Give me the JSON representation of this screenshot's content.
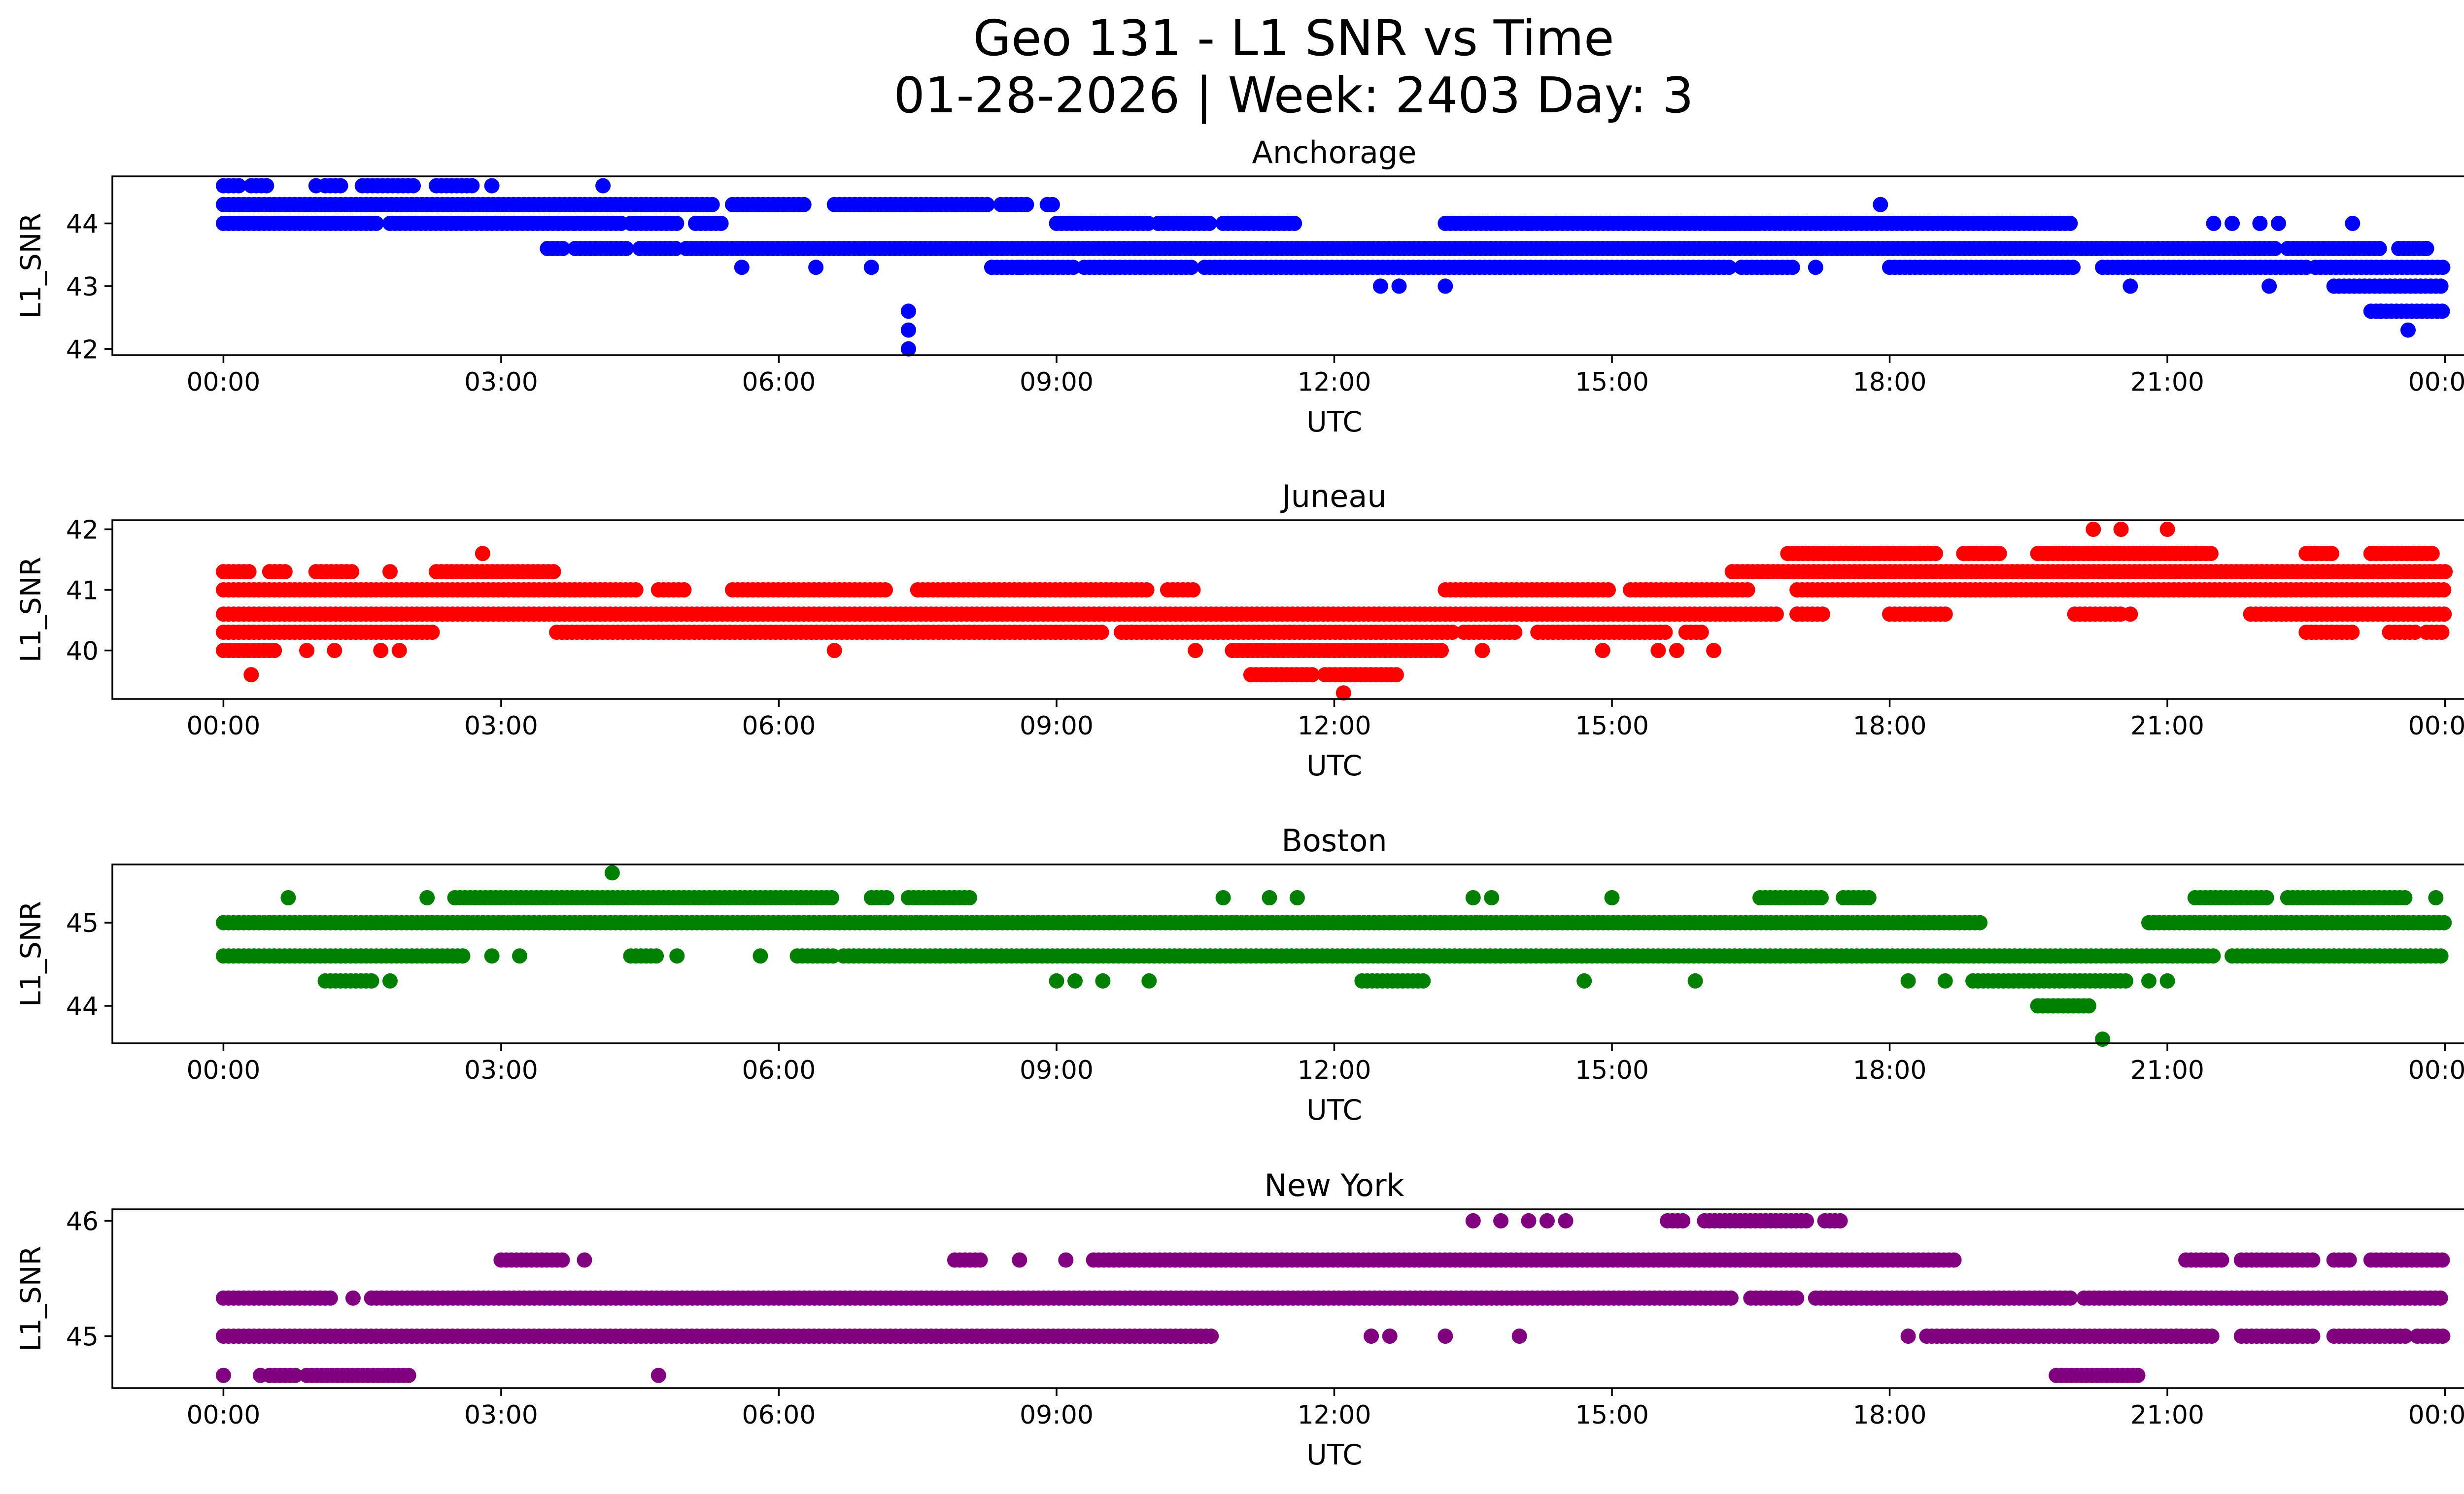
{
  "figure": {
    "title_line1": "Geo 131 - L1 SNR vs Time",
    "title_line2": "01-28-2026 | Week: 2403 Day: 3"
  },
  "chart_data": [
    {
      "type": "scatter",
      "title": "Anchorage",
      "xlabel": "UTC",
      "ylabel": "L1_SNR",
      "color": "#0000ff",
      "x_unit": "hours since 00:00 UTC",
      "xlim": [
        -1.2,
        25.2
      ],
      "ylim": [
        41.9,
        44.75
      ],
      "yticks": [
        42,
        43,
        44
      ],
      "xticklabels": [
        "00:00",
        "03:00",
        "06:00",
        "09:00",
        "12:00",
        "15:00",
        "18:00",
        "21:00",
        "00:00"
      ],
      "series": [
        {
          "name": "band 44.3",
          "y": 44.3,
          "ranges": [
            [
              0,
              5.3
            ],
            [
              5.5,
              6.3
            ],
            [
              6.6,
              8.3
            ],
            [
              8.4,
              8.7
            ],
            [
              8.9,
              9.0
            ]
          ]
        },
        {
          "name": "band 44.0",
          "y": 44.0,
          "ranges": [
            [
              0,
              1.7
            ],
            [
              1.8,
              3.8
            ],
            [
              3.8,
              4.3
            ],
            [
              4.4,
              4.9
            ],
            [
              5.1,
              5.4
            ],
            [
              9.0,
              10.0
            ],
            [
              10.1,
              10.7
            ],
            [
              10.8,
              11.6
            ],
            [
              16.1,
              20.0
            ],
            [
              13.2,
              16.6
            ]
          ]
        },
        {
          "name": "band 43.6",
          "y": 43.6,
          "ranges": [
            [
              3.5,
              3.7
            ],
            [
              3.8,
              4.4
            ],
            [
              4.5,
              4.9
            ],
            [
              5.0,
              22.2
            ],
            [
              22.3,
              23.3
            ],
            [
              23.5,
              23.8
            ]
          ]
        },
        {
          "name": "band 43.3",
          "y": 43.3,
          "ranges": [
            [
              8.3,
              9.2
            ],
            [
              9.3,
              10.5
            ],
            [
              10.6,
              16.3
            ],
            [
              16.4,
              17.0
            ],
            [
              18.0,
              20.0
            ],
            [
              20.3,
              22.5
            ],
            [
              22.6,
              24.0
            ]
          ]
        },
        {
          "name": "band 43.0",
          "y": 43.0,
          "ranges": [
            [
              22.8,
              24.0
            ]
          ]
        },
        {
          "name": "band 42.6",
          "y": 42.6,
          "ranges": [
            [
              23.2,
              24.0
            ]
          ]
        },
        {
          "name": "band 44.6",
          "y": 44.6,
          "ranges": [
            [
              0.0,
              0.2
            ],
            [
              0.3,
              0.5
            ],
            [
              1.1,
              1.3
            ],
            [
              1.5,
              2.1
            ],
            [
              2.3,
              2.7
            ]
          ]
        },
        {
          "name": "isolated",
          "points": [
            [
              1.0,
              44.6
            ],
            [
              2.9,
              44.6
            ],
            [
              4.1,
              44.6
            ],
            [
              5.6,
              43.3
            ],
            [
              6.4,
              43.3
            ],
            [
              7.0,
              43.3
            ],
            [
              7.4,
              42.6
            ],
            [
              7.4,
              42.3
            ],
            [
              7.4,
              42.0
            ],
            [
              8.3,
              43.3
            ],
            [
              8.6,
              43.3
            ],
            [
              12.5,
              43.0
            ],
            [
              12.7,
              43.0
            ],
            [
              13.2,
              43.0
            ],
            [
              13.8,
              44.0
            ],
            [
              14.1,
              44.0
            ],
            [
              14.3,
              44.0
            ],
            [
              17.2,
              43.3
            ],
            [
              17.9,
              44.3
            ],
            [
              20.6,
              43.0
            ],
            [
              21.5,
              44.0
            ],
            [
              21.7,
              44.0
            ],
            [
              22.0,
              44.0
            ],
            [
              22.2,
              44.0
            ],
            [
              22.1,
              43.0
            ],
            [
              23.3,
              42.6
            ],
            [
              23.6,
              42.3
            ],
            [
              23.0,
              44.0
            ],
            [
              23.8,
              43.6
            ]
          ]
        }
      ]
    },
    {
      "type": "scatter",
      "title": "Juneau",
      "xlabel": "UTC",
      "ylabel": "L1_SNR",
      "color": "#ff0000",
      "x_unit": "hours since 00:00 UTC",
      "xlim": [
        -1.2,
        25.2
      ],
      "ylim": [
        39.2,
        42.15
      ],
      "yticks": [
        40,
        41,
        42
      ],
      "xticklabels": [
        "00:00",
        "03:00",
        "06:00",
        "09:00",
        "12:00",
        "15:00",
        "18:00",
        "21:00",
        "00:00"
      ],
      "series": [
        {
          "name": "band 41.3",
          "y": 41.3,
          "ranges": [
            [
              0.0,
              0.3
            ],
            [
              0.5,
              0.7
            ],
            [
              1.0,
              1.4
            ],
            [
              2.3,
              3.6
            ],
            [
              16.3,
              24.0
            ]
          ]
        },
        {
          "name": "band 41.0",
          "y": 41.0,
          "ranges": [
            [
              0.0,
              4.5
            ],
            [
              4.7,
              5.0
            ],
            [
              5.5,
              7.2
            ],
            [
              7.5,
              10.0
            ],
            [
              10.2,
              10.5
            ],
            [
              13.2,
              15.0
            ],
            [
              15.2,
              16.5
            ],
            [
              17.0,
              24.0
            ]
          ]
        },
        {
          "name": "band 40.6",
          "y": 40.6,
          "ranges": [
            [
              0.0,
              16.8
            ],
            [
              17.0,
              17.3
            ],
            [
              18.0,
              18.6
            ],
            [
              20.0,
              20.5
            ],
            [
              21.9,
              24.0
            ]
          ]
        },
        {
          "name": "band 40.3",
          "y": 40.3,
          "ranges": [
            [
              0.0,
              2.3
            ],
            [
              3.6,
              9.5
            ],
            [
              9.7,
              13.3
            ],
            [
              13.4,
              14.0
            ],
            [
              14.2,
              15.6
            ],
            [
              15.8,
              16.0
            ],
            [
              22.5,
              23.0
            ],
            [
              23.4,
              23.7
            ],
            [
              23.8,
              24.0
            ]
          ]
        },
        {
          "name": "band 40.0",
          "y": 40.0,
          "ranges": [
            [
              0.0,
              0.6
            ],
            [
              10.9,
              13.2
            ]
          ]
        },
        {
          "name": "band 39.6",
          "y": 39.6,
          "ranges": [
            [
              11.1,
              11.8
            ],
            [
              11.9,
              12.7
            ]
          ]
        },
        {
          "name": "band 41.6",
          "y": 41.6,
          "ranges": [
            [
              16.9,
              18.5
            ],
            [
              18.8,
              19.2
            ],
            [
              19.6,
              21.5
            ],
            [
              22.5,
              22.8
            ],
            [
              23.2,
              23.9
            ]
          ]
        },
        {
          "name": "isolated",
          "points": [
            [
              0.3,
              39.6
            ],
            [
              0.9,
              40.0
            ],
            [
              1.2,
              40.0
            ],
            [
              1.7,
              40.0
            ],
            [
              1.9,
              40.0
            ],
            [
              1.8,
              41.3
            ],
            [
              2.8,
              41.6
            ],
            [
              6.6,
              40.0
            ],
            [
              10.5,
              40.0
            ],
            [
              12.1,
              39.3
            ],
            [
              13.6,
              40.0
            ],
            [
              14.9,
              40.0
            ],
            [
              15.5,
              40.0
            ],
            [
              15.7,
              40.0
            ],
            [
              16.1,
              40.0
            ],
            [
              17.0,
              40.6
            ],
            [
              20.2,
              42.0
            ],
            [
              20.5,
              42.0
            ],
            [
              21.0,
              42.0
            ],
            [
              18.6,
              40.6
            ],
            [
              20.6,
              40.6
            ]
          ]
        }
      ]
    },
    {
      "type": "scatter",
      "title": "Boston",
      "xlabel": "UTC",
      "ylabel": "L1_SNR",
      "color": "#008000",
      "x_unit": "hours since 00:00 UTC",
      "xlim": [
        -1.2,
        25.2
      ],
      "ylim": [
        43.55,
        45.7
      ],
      "yticks": [
        44,
        45
      ],
      "xticklabels": [
        "00:00",
        "03:00",
        "06:00",
        "09:00",
        "12:00",
        "15:00",
        "18:00",
        "21:00",
        "00:00"
      ],
      "series": [
        {
          "name": "band 45.3",
          "y": 45.3,
          "ranges": [
            [
              2.5,
              6.6
            ],
            [
              7.0,
              7.2
            ],
            [
              7.4,
              8.1
            ],
            [
              16.6,
              17.3
            ],
            [
              17.5,
              17.8
            ],
            [
              21.3,
              22.1
            ],
            [
              22.3,
              23.6
            ]
          ]
        },
        {
          "name": "band 45.0",
          "y": 45.0,
          "ranges": [
            [
              0.0,
              19.0
            ],
            [
              20.8,
              24.0
            ]
          ]
        },
        {
          "name": "band 44.6",
          "y": 44.6,
          "ranges": [
            [
              0.0,
              2.6
            ],
            [
              4.4,
              4.7
            ],
            [
              6.2,
              6.6
            ],
            [
              6.7,
              21.5
            ],
            [
              21.7,
              24.0
            ]
          ]
        },
        {
          "name": "band 44.3",
          "y": 44.3,
          "ranges": [
            [
              1.1,
              1.6
            ],
            [
              12.3,
              13.0
            ],
            [
              18.9,
              20.6
            ]
          ]
        },
        {
          "name": "band 44.0",
          "y": 44.0,
          "ranges": [
            [
              19.6,
              20.2
            ]
          ]
        },
        {
          "name": "isolated",
          "points": [
            [
              0.7,
              45.3
            ],
            [
              1.6,
              44.3
            ],
            [
              1.8,
              44.3
            ],
            [
              2.2,
              45.3
            ],
            [
              2.9,
              44.6
            ],
            [
              3.2,
              44.6
            ],
            [
              4.2,
              45.6
            ],
            [
              4.9,
              44.6
            ],
            [
              5.8,
              44.6
            ],
            [
              9.0,
              44.3
            ],
            [
              9.2,
              44.3
            ],
            [
              9.5,
              44.3
            ],
            [
              10.0,
              44.3
            ],
            [
              10.8,
              45.3
            ],
            [
              11.3,
              45.3
            ],
            [
              11.6,
              45.3
            ],
            [
              13.5,
              45.3
            ],
            [
              13.7,
              45.3
            ],
            [
              14.7,
              44.3
            ],
            [
              15.0,
              45.3
            ],
            [
              15.9,
              44.3
            ],
            [
              18.2,
              44.3
            ],
            [
              18.6,
              44.3
            ],
            [
              20.3,
              43.6
            ],
            [
              20.8,
              44.3
            ],
            [
              21.0,
              44.3
            ],
            [
              23.9,
              45.3
            ]
          ]
        }
      ]
    },
    {
      "type": "scatter",
      "title": "New York",
      "xlabel": "UTC",
      "ylabel": "L1_SNR",
      "color": "#800080",
      "x_unit": "hours since 00:00 UTC",
      "xlim": [
        -1.2,
        25.2
      ],
      "ylim": [
        44.55,
        46.1
      ],
      "yticks": [
        45,
        46
      ],
      "xticklabels": [
        "00:00",
        "03:00",
        "06:00",
        "09:00",
        "12:00",
        "15:00",
        "18:00",
        "21:00",
        "00:00"
      ],
      "series": [
        {
          "name": "band 45.66",
          "y": 45.66,
          "ranges": [
            [
              3.0,
              3.7
            ],
            [
              7.9,
              8.2
            ],
            [
              9.4,
              18.7
            ],
            [
              21.2,
              21.6
            ],
            [
              21.8,
              22.6
            ],
            [
              22.8,
              23.0
            ],
            [
              23.2,
              24.0
            ]
          ]
        },
        {
          "name": "band 45.33",
          "y": 45.33,
          "ranges": [
            [
              0.0,
              1.2
            ],
            [
              1.6,
              16.3
            ],
            [
              16.5,
              17.0
            ],
            [
              17.2,
              20.0
            ],
            [
              20.1,
              24.0
            ]
          ]
        },
        {
          "name": "band 45.0",
          "y": 45.0,
          "ranges": [
            [
              0.0,
              10.7
            ],
            [
              18.4,
              21.5
            ],
            [
              21.8,
              22.6
            ],
            [
              22.8,
              23.6
            ],
            [
              23.7,
              24.0
            ]
          ]
        },
        {
          "name": "band 44.66",
          "y": 44.66,
          "ranges": [
            [
              0.5,
              0.8
            ],
            [
              0.9,
              2.0
            ],
            [
              19.8,
              20.7
            ]
          ]
        },
        {
          "name": "band 46.0",
          "y": 46.0,
          "ranges": [
            [
              15.6,
              15.8
            ],
            [
              16.0,
              17.1
            ],
            [
              17.3,
              17.5
            ]
          ]
        },
        {
          "name": "isolated",
          "points": [
            [
              0.0,
              44.66
            ],
            [
              0.4,
              44.66
            ],
            [
              1.4,
              45.33
            ],
            [
              3.9,
              45.66
            ],
            [
              4.7,
              44.66
            ],
            [
              8.6,
              45.66
            ],
            [
              9.1,
              45.66
            ],
            [
              12.4,
              45.0
            ],
            [
              12.6,
              45.0
            ],
            [
              13.2,
              45.0
            ],
            [
              14.0,
              45.0
            ],
            [
              13.5,
              46.0
            ],
            [
              13.8,
              46.0
            ],
            [
              14.1,
              46.0
            ],
            [
              14.3,
              46.0
            ],
            [
              14.5,
              46.0
            ],
            [
              18.2,
              45.0
            ],
            [
              21.1,
              45.0
            ],
            [
              22.3,
              45.0
            ]
          ]
        }
      ]
    }
  ]
}
